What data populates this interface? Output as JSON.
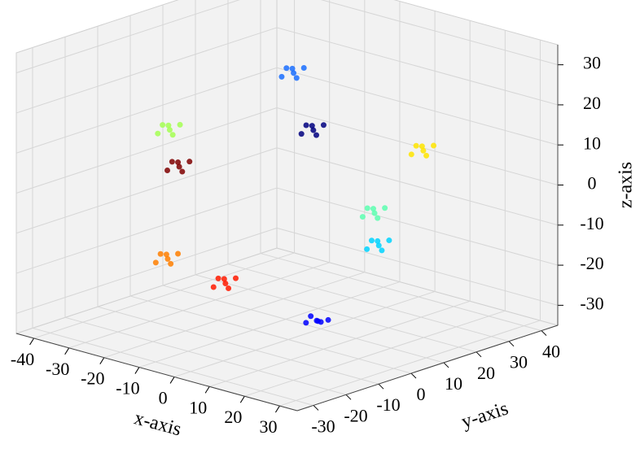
{
  "chart_data": {
    "type": "scatter3d",
    "xlabel": "x-axis",
    "ylabel": "y-axis",
    "zlabel": "z-axis",
    "xlim": [
      -45,
      35
    ],
    "ylim": [
      -35,
      45
    ],
    "zlim": [
      -35,
      35
    ],
    "xticks": [
      -40,
      -30,
      -20,
      -10,
      0,
      10,
      20,
      30
    ],
    "yticks": [
      -30,
      -20,
      -10,
      0,
      10,
      20,
      30,
      40
    ],
    "zticks": [
      -30,
      -20,
      -10,
      0,
      10,
      20,
      30
    ],
    "grid": true,
    "series": [
      {
        "color": "#00007f",
        "x": [
          -15.5,
          -13.5,
          -17.5,
          -14,
          -16.5,
          -18
        ],
        "y": [
          24.4,
          25.4,
          22.9,
          22.4,
          26.4,
          24.9
        ],
        "z": [
          7,
          8.5,
          6,
          9,
          5,
          7.5
        ]
      },
      {
        "color": "#0000ff",
        "x": [
          2.5,
          4.5,
          0.5,
          4,
          1.5,
          0
        ],
        "y": [
          6.4,
          7.4,
          4.9,
          4.4,
          8.4,
          6.9
        ],
        "z": [
          -31.5,
          -31,
          -32,
          -30.5,
          -32.5,
          -31
        ]
      },
      {
        "color": "#1a6fff",
        "x": [
          -12.4,
          -10.4,
          -14.4,
          -10.9,
          -13.4,
          -14.9
        ],
        "y": [
          15,
          16,
          13.5,
          13,
          17,
          15.5
        ],
        "z": [
          24.5,
          26,
          23.5,
          26.5,
          22.5,
          25
        ]
      },
      {
        "color": "#00d4ff",
        "x": [
          -3.9,
          -1.9,
          -5.9,
          -2.4,
          -4.9,
          -6.4
        ],
        "y": [
          32,
          33,
          30.5,
          30,
          34,
          32.5
        ],
        "z": [
          -21,
          -19.5,
          -22,
          -19,
          -23,
          -20.5
        ]
      },
      {
        "color": "#5cffb0",
        "x": [
          -6.6,
          -4.6,
          -8.6,
          -5.1,
          -7.6,
          -9.1
        ],
        "y": [
          33.6,
          34.6,
          32.1,
          31.6,
          35.6,
          34.1
        ],
        "z": [
          -14,
          -12.5,
          -15,
          -12,
          -16,
          -13.5
        ]
      },
      {
        "color": "#a4ff52",
        "x": [
          -18,
          -16,
          -20,
          -16.5,
          -19,
          -20.5
        ],
        "y": [
          -17,
          -16,
          -18.5,
          -19,
          -15,
          -16.5
        ],
        "z": [
          17.5,
          19,
          16.5,
          19.5,
          15.5,
          18
        ]
      },
      {
        "color": "#ffe500",
        "x": [
          4.6,
          6.6,
          2.6,
          6.1,
          3.6,
          2.1
        ],
        "y": [
          36.5,
          37.5,
          35,
          34.5,
          38.5,
          37
        ],
        "z": [
          3.5,
          5,
          2.5,
          5.5,
          1.5,
          4
        ]
      },
      {
        "color": "#ff7f00",
        "x": [
          -17,
          -15,
          -19,
          -15.5,
          -18,
          -19.5
        ],
        "y": [
          -18.7,
          -17.7,
          -20.2,
          -20.7,
          -16.7,
          -18.2
        ],
        "z": [
          -14,
          -12.5,
          -15,
          -12,
          -16,
          -13.5
        ]
      },
      {
        "color": "#ff1a00",
        "x": [
          -23,
          -21,
          -25,
          -21.5,
          -24,
          -25.5
        ],
        "y": [
          5.5,
          6.5,
          4,
          3.5,
          7.5,
          6
        ],
        "z": [
          -28,
          -26.5,
          -29,
          -26,
          -30,
          -27.5
        ]
      },
      {
        "color": "#7f0000",
        "x": [
          -19,
          -17,
          -21,
          -17.5,
          -20,
          -21.5
        ],
        "y": [
          -13,
          -12,
          -14.5,
          -15,
          -11,
          -12.5
        ],
        "z": [
          7,
          8.5,
          6,
          9,
          5,
          7.5
        ]
      }
    ]
  }
}
